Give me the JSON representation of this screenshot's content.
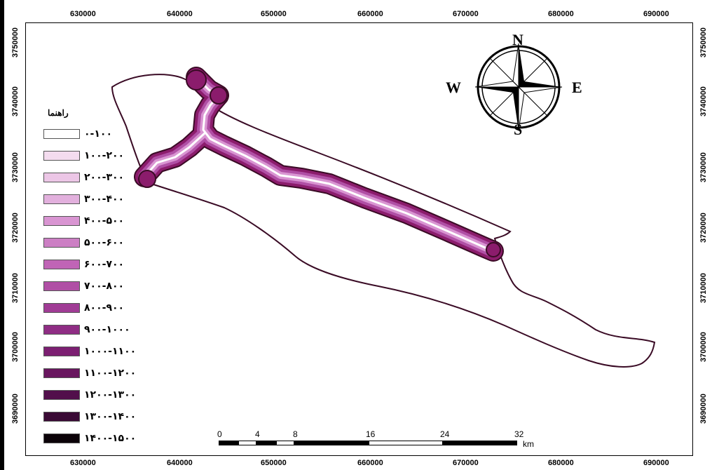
{
  "map": {
    "x_ticks": [
      "630000",
      "640000",
      "650000",
      "660000",
      "670000",
      "680000",
      "690000"
    ],
    "y_ticks": [
      "3750000",
      "3740000",
      "3730000",
      "3720000",
      "3710000",
      "3700000",
      "3690000"
    ],
    "outline_color": "#3a0b25",
    "buffer_color": "#8b1c6c"
  },
  "legend": {
    "title": "راهنما",
    "items": [
      {
        "label": "۰-۱۰۰",
        "color": "#ffffff"
      },
      {
        "label": "۱۰۰-۲۰۰",
        "color": "#f4dcef"
      },
      {
        "label": "۲۰۰-۳۰۰",
        "color": "#ecc6e6"
      },
      {
        "label": "۳۰۰-۴۰۰",
        "color": "#e2b0dd"
      },
      {
        "label": "۴۰۰-۵۰۰",
        "color": "#d995d2"
      },
      {
        "label": "۵۰۰-۶۰۰",
        "color": "#cc7fc4"
      },
      {
        "label": "۶۰۰-۷۰۰",
        "color": "#c064b6"
      },
      {
        "label": "۷۰۰-۸۰۰",
        "color": "#b04fa5"
      },
      {
        "label": "۸۰۰-۹۰۰",
        "color": "#a03c95"
      },
      {
        "label": "۹۰۰-۱۰۰۰",
        "color": "#8f2d84"
      },
      {
        "label": "۱۰۰۰-۱۱۰۰",
        "color": "#7c1f72"
      },
      {
        "label": "۱۱۰۰-۱۲۰۰",
        "color": "#69165f"
      },
      {
        "label": "۱۲۰۰-۱۳۰۰",
        "color": "#520f4b"
      },
      {
        "label": "۱۳۰۰-۱۴۰۰",
        "color": "#3a0a35"
      },
      {
        "label": "۱۴۰۰-۱۵۰۰",
        "color": "#0b0208"
      }
    ]
  },
  "compass": {
    "north": "N",
    "south": "S",
    "east": "E",
    "west": "W"
  },
  "scalebar": {
    "labels": [
      "0",
      "4",
      "8",
      "16",
      "24",
      "32"
    ],
    "unit": "km"
  }
}
